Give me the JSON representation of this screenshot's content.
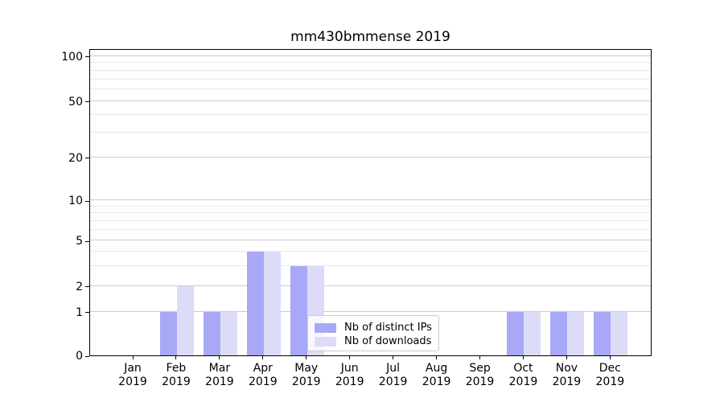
{
  "chart_data": {
    "type": "bar",
    "title": "mm430bmmense 2019",
    "x_tick_months": [
      "Jan",
      "Feb",
      "Mar",
      "Apr",
      "May",
      "Jun",
      "Jul",
      "Aug",
      "Sep",
      "Oct",
      "Nov",
      "Dec"
    ],
    "x_tick_year": "2019",
    "series": [
      {
        "name": "Nb of distinct IPs",
        "color": "#a8a8f7",
        "values": [
          0,
          1,
          1,
          4,
          3,
          0,
          0,
          0,
          0,
          1,
          1,
          1
        ]
      },
      {
        "name": "Nb of downloads",
        "color": "#dcdcf9",
        "values": [
          0,
          2,
          1,
          4,
          3,
          0,
          0,
          0,
          0,
          1,
          1,
          1
        ]
      }
    ],
    "y_ticks": [
      0,
      1,
      2,
      5,
      10,
      20,
      50,
      100
    ],
    "y_minor_ticks": [
      3,
      4,
      6,
      7,
      8,
      9,
      30,
      40,
      60,
      70,
      80,
      90
    ],
    "y_scale": "log-like with zero baseline",
    "ylim": [
      0,
      113
    ],
    "grid": "horizontal, major and minor",
    "legend": {
      "entries": [
        "Nb of distinct IPs",
        "Nb of downloads"
      ],
      "position": "lower center"
    }
  },
  "colors": {
    "background": "#ffffff",
    "bar_distinct_ips": "#a8a8f7",
    "bar_downloads": "#dcdcf9",
    "grid_major": "#cccccc",
    "grid_minor": "#e9e9e9",
    "axis": "#000000",
    "text": "#000000",
    "legend_border": "#cccccc"
  }
}
